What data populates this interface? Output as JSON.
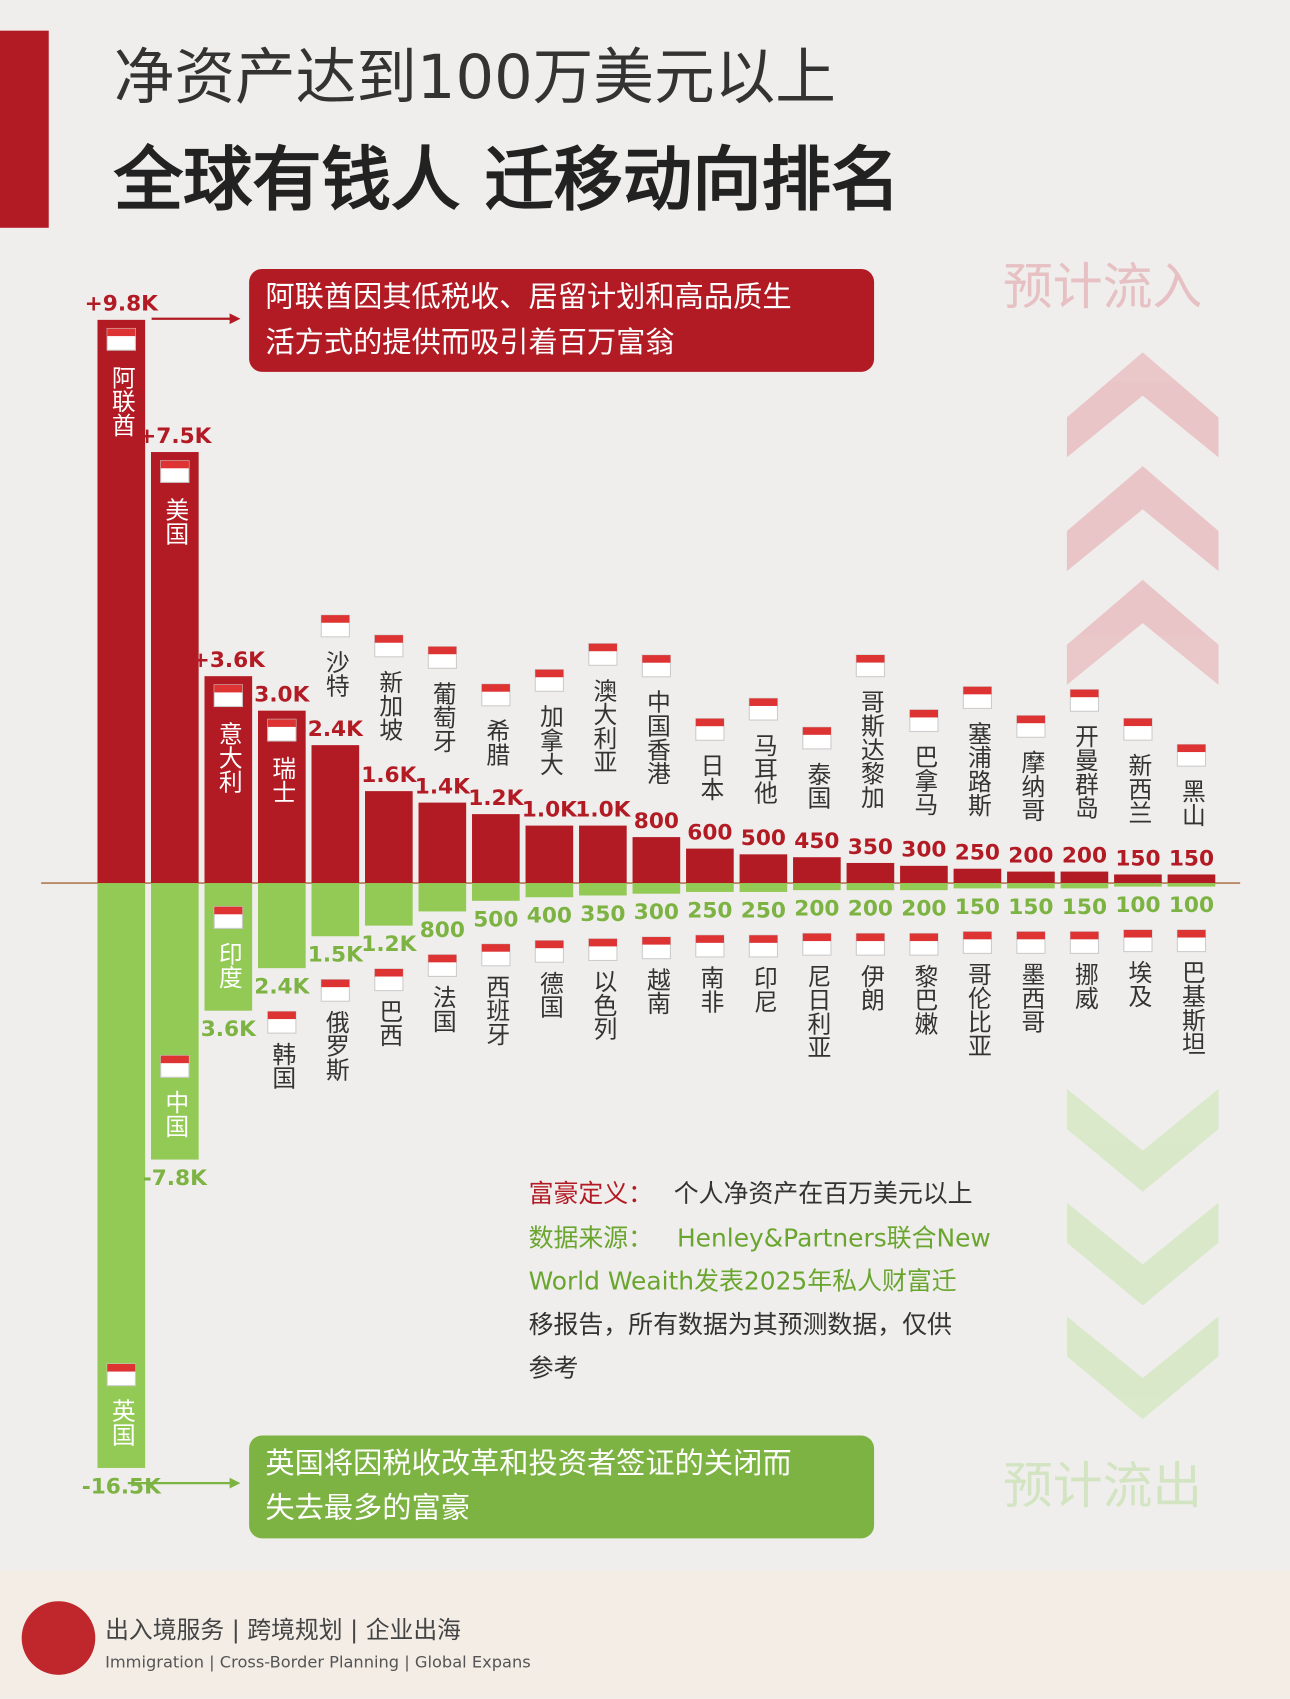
{
  "header": {
    "title_line1": "净资产达到100万美元以上",
    "title_line2": "全球有钱人 迁移动向排名"
  },
  "chart_data": [
    {
      "type": "bar",
      "title": "预计流入",
      "color": "#b31b24",
      "annotation": [
        "阿联酋因其低税收、居留计划和高品质生",
        "活方式的提供而吸引着百万富翁"
      ],
      "categories": [
        "阿联酋",
        "美国",
        "意大利",
        "瑞士",
        "沙特",
        "新加坡",
        "葡萄牙",
        "希腊",
        "加拿大",
        "澳大利亚",
        "中国香港",
        "日本",
        "马耳他",
        "泰国",
        "哥斯达黎加",
        "巴拿马",
        "塞浦路斯",
        "摩纳哥",
        "开曼群岛",
        "新西兰",
        "黑山"
      ],
      "values": [
        9800,
        7500,
        3600,
        3000,
        2400,
        1600,
        1400,
        1200,
        1000,
        1000,
        800,
        600,
        500,
        450,
        350,
        300,
        250,
        200,
        200,
        150,
        150
      ],
      "value_labels": [
        "+9.8K",
        "+7.5K",
        "+3.6K",
        "3.0K",
        "2.4K",
        "1.6K",
        "1.4K",
        "1.2K",
        "1.0K",
        "1.0K",
        "800",
        "600",
        "500",
        "450",
        "350",
        "300",
        "250",
        "200",
        "200",
        "150",
        "150"
      ]
    },
    {
      "type": "bar",
      "title": "预计流出",
      "color": "#93c955",
      "annotation": [
        "英国将因税收改革和投资者签证的关闭而",
        "失去最多的富豪"
      ],
      "categories": [
        "英国",
        "中国",
        "印度",
        "韩国",
        "俄罗斯",
        "巴西",
        "法国",
        "西班牙",
        "德国",
        "以色列",
        "越南",
        "南非",
        "印尼",
        "尼日利亚",
        "伊朗",
        "黎巴嫩",
        "哥伦比亚",
        "墨西哥",
        "挪威",
        "埃及",
        "巴基斯坦"
      ],
      "values": [
        -16500,
        -7800,
        -3600,
        -2400,
        -1500,
        -1200,
        -800,
        -500,
        -400,
        -350,
        -300,
        -250,
        -250,
        -200,
        -200,
        -200,
        -150,
        -150,
        -150,
        -100,
        -100
      ],
      "value_labels": [
        "-16.5K",
        "-7.8K",
        "3.6K",
        "2.4K",
        "1.5K",
        "1.2K",
        "800",
        "500",
        "400",
        "350",
        "300",
        "250",
        "250",
        "200",
        "200",
        "200",
        "150",
        "150",
        "150",
        "100",
        "100"
      ]
    }
  ],
  "notes": {
    "definition_label": "富豪定义：",
    "definition": "个人净资产在百万美元以上",
    "source_label": "数据来源：",
    "source": [
      "Henley&Partners联合New",
      "World    Weaith发表2025年私人财富迁",
      "移报告，所有数据为其预测数据，仅供",
      "参考"
    ]
  },
  "footer": {
    "services": "出入境服务 | 跨境规划 | 企业出海",
    "services_en": "Immigration | Cross-Border Planning | Global Expans"
  }
}
